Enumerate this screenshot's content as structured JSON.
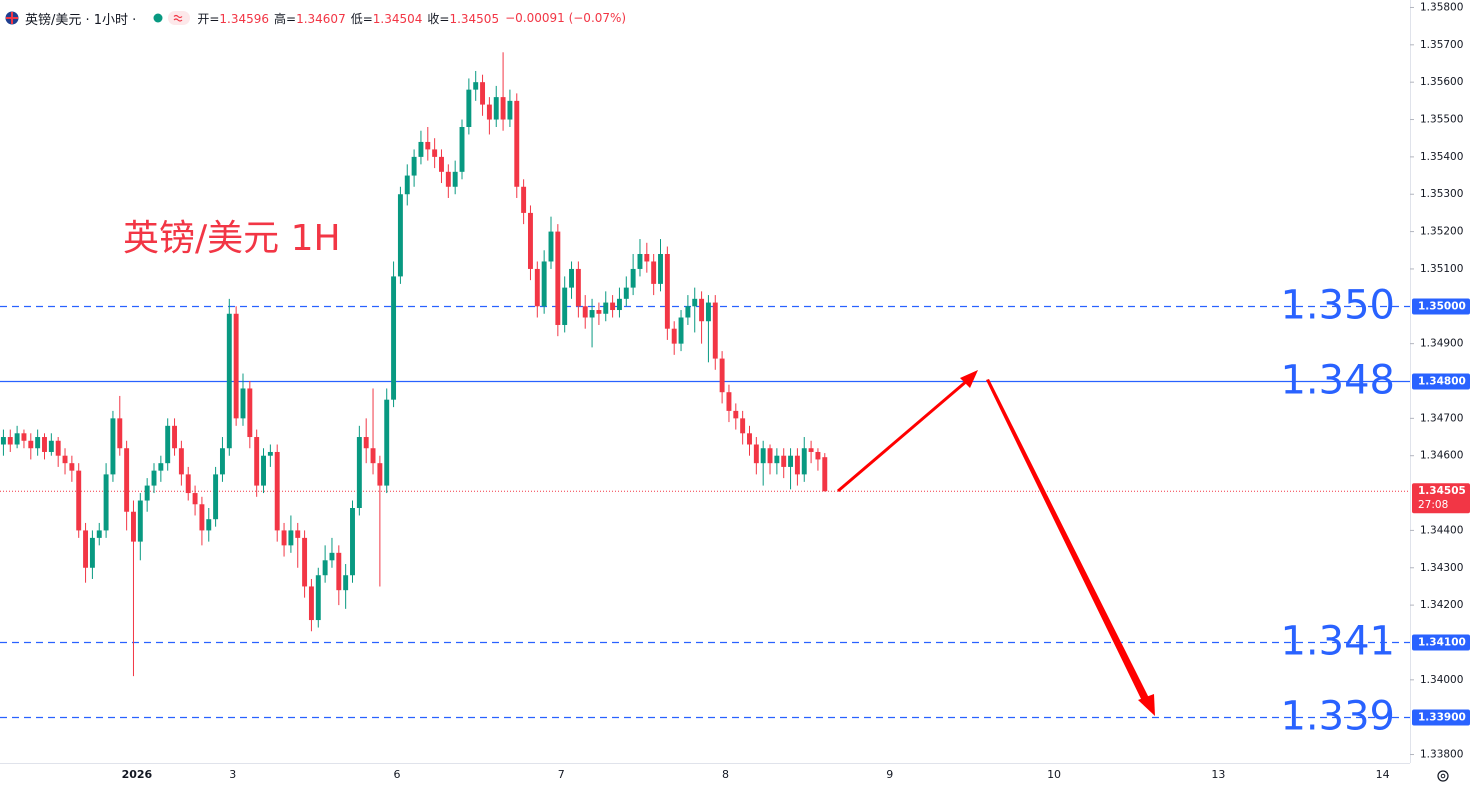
{
  "chart_data": {
    "type": "candlestick",
    "symbol": "英镑/美元 · 1小时 ·",
    "ohlc_labels": [
      "开=",
      "高=",
      "低=",
      "收="
    ],
    "ohlc_values": [
      1.34596,
      1.34607,
      1.34504,
      1.34505
    ],
    "change": "−0.00091 (−0.07%)",
    "title": "英镑/美元 1H",
    "up_color": "#089981",
    "down_color": "#f23645",
    "level_color": "#2962ff",
    "grid": false,
    "xlim": [
      -0.5,
      205.5
    ],
    "xticks": [
      {
        "value": 19.5,
        "label": "2026"
      },
      {
        "value": 33.5,
        "label": "3"
      },
      {
        "value": 57.5,
        "label": "6"
      },
      {
        "value": 81.5,
        "label": "7"
      },
      {
        "value": 105.5,
        "label": "8"
      },
      {
        "value": 129.5,
        "label": "9"
      },
      {
        "value": 153.5,
        "label": "10"
      },
      {
        "value": 177.5,
        "label": "13"
      },
      {
        "value": 201.5,
        "label": "14"
      }
    ],
    "ylim": [
      1.3378,
      1.3582
    ],
    "yticks": [
      {
        "value": 1.338,
        "label": "1.33800"
      },
      {
        "value": 1.34,
        "label": "1.34000"
      },
      {
        "value": 1.342,
        "label": "1.34200"
      },
      {
        "value": 1.343,
        "label": "1.34300"
      },
      {
        "value": 1.344,
        "label": "1.34400"
      },
      {
        "value": 1.346,
        "label": "1.34600"
      },
      {
        "value": 1.347,
        "label": "1.34700"
      },
      {
        "value": 1.349,
        "label": "1.34900"
      },
      {
        "value": 1.351,
        "label": "1.35100"
      },
      {
        "value": 1.352,
        "label": "1.35200"
      },
      {
        "value": 1.353,
        "label": "1.35300"
      },
      {
        "value": 1.354,
        "label": "1.35400"
      },
      {
        "value": 1.355,
        "label": "1.35500"
      },
      {
        "value": 1.356,
        "label": "1.35600"
      },
      {
        "value": 1.357,
        "label": "1.35700"
      },
      {
        "value": 1.358,
        "label": "1.35800"
      }
    ],
    "levels": [
      {
        "value": 1.35,
        "label": "1.350",
        "badge": "1.35000",
        "dashed": true
      },
      {
        "value": 1.348,
        "label": "1.348",
        "badge": "1.34800",
        "dashed": false
      },
      {
        "value": 1.341,
        "label": "1.341",
        "badge": "1.34100",
        "dashed": true
      },
      {
        "value": 1.339,
        "label": "1.339",
        "badge": "1.33900",
        "dashed": true
      }
    ],
    "last_price": {
      "value": 1.34505,
      "countdown": "27:08"
    },
    "candles": [
      [
        1.3463,
        1.3467,
        1.346,
        1.3465
      ],
      [
        1.3465,
        1.3467,
        1.3461,
        1.3463
      ],
      [
        1.3463,
        1.3468,
        1.3462,
        1.3466
      ],
      [
        1.3466,
        1.3467,
        1.3462,
        1.3464
      ],
      [
        1.3464,
        1.3466,
        1.3459,
        1.3462
      ],
      [
        1.3462,
        1.3467,
        1.346,
        1.3465
      ],
      [
        1.3465,
        1.3466,
        1.3459,
        1.3461
      ],
      [
        1.3461,
        1.3466,
        1.346,
        1.3464
      ],
      [
        1.3464,
        1.3465,
        1.3457,
        1.346
      ],
      [
        1.346,
        1.3462,
        1.3455,
        1.3458
      ],
      [
        1.3458,
        1.346,
        1.3453,
        1.3456
      ],
      [
        1.3456,
        1.3458,
        1.3438,
        1.344
      ],
      [
        1.344,
        1.3442,
        1.3426,
        1.343
      ],
      [
        1.343,
        1.344,
        1.3427,
        1.3438
      ],
      [
        1.3438,
        1.3442,
        1.3436,
        1.344
      ],
      [
        1.344,
        1.3458,
        1.3438,
        1.3455
      ],
      [
        1.3455,
        1.3472,
        1.3453,
        1.347
      ],
      [
        1.347,
        1.3476,
        1.346,
        1.3462
      ],
      [
        1.3462,
        1.3464,
        1.344,
        1.3445
      ],
      [
        1.3445,
        1.3448,
        1.3401,
        1.3437
      ],
      [
        1.3437,
        1.345,
        1.3432,
        1.3448
      ],
      [
        1.3448,
        1.3454,
        1.3445,
        1.3452
      ],
      [
        1.3452,
        1.3458,
        1.345,
        1.3456
      ],
      [
        1.3456,
        1.346,
        1.3453,
        1.3458
      ],
      [
        1.3458,
        1.347,
        1.3456,
        1.3468
      ],
      [
        1.3468,
        1.347,
        1.346,
        1.3462
      ],
      [
        1.3462,
        1.3464,
        1.3452,
        1.3455
      ],
      [
        1.3455,
        1.3457,
        1.3448,
        1.345
      ],
      [
        1.345,
        1.3452,
        1.3444,
        1.3447
      ],
      [
        1.3447,
        1.3449,
        1.3436,
        1.344
      ],
      [
        1.344,
        1.3446,
        1.3437,
        1.3443
      ],
      [
        1.3443,
        1.3457,
        1.3441,
        1.3455
      ],
      [
        1.3455,
        1.3465,
        1.3453,
        1.3462
      ],
      [
        1.3462,
        1.3502,
        1.346,
        1.3498
      ],
      [
        1.3498,
        1.35,
        1.3468,
        1.347
      ],
      [
        1.347,
        1.3482,
        1.3468,
        1.3478
      ],
      [
        1.3478,
        1.348,
        1.3462,
        1.3465
      ],
      [
        1.3465,
        1.3467,
        1.3449,
        1.3452
      ],
      [
        1.3452,
        1.3462,
        1.345,
        1.346
      ],
      [
        1.346,
        1.3463,
        1.3457,
        1.3461
      ],
      [
        1.3461,
        1.3463,
        1.3437,
        1.344
      ],
      [
        1.344,
        1.3442,
        1.3433,
        1.3436
      ],
      [
        1.3436,
        1.3444,
        1.3434,
        1.344
      ],
      [
        1.344,
        1.3442,
        1.343,
        1.3438
      ],
      [
        1.3438,
        1.344,
        1.3422,
        1.3425
      ],
      [
        1.3425,
        1.3427,
        1.3413,
        1.3416
      ],
      [
        1.3416,
        1.343,
        1.3414,
        1.3428
      ],
      [
        1.3428,
        1.3436,
        1.3426,
        1.3432
      ],
      [
        1.3432,
        1.3438,
        1.343,
        1.3434
      ],
      [
        1.3434,
        1.3436,
        1.342,
        1.3424
      ],
      [
        1.3424,
        1.3431,
        1.3419,
        1.3428
      ],
      [
        1.3428,
        1.3448,
        1.3426,
        1.3446
      ],
      [
        1.3446,
        1.3468,
        1.3444,
        1.3465
      ],
      [
        1.3465,
        1.347,
        1.3458,
        1.3462
      ],
      [
        1.3462,
        1.3478,
        1.3455,
        1.3458
      ],
      [
        1.3458,
        1.346,
        1.3425,
        1.3452
      ],
      [
        1.3452,
        1.3478,
        1.345,
        1.3475
      ],
      [
        1.3475,
        1.3512,
        1.3473,
        1.3508
      ],
      [
        1.3508,
        1.3532,
        1.3506,
        1.353
      ],
      [
        1.353,
        1.3538,
        1.3527,
        1.3535
      ],
      [
        1.3535,
        1.3542,
        1.3532,
        1.354
      ],
      [
        1.354,
        1.3547,
        1.3538,
        1.3544
      ],
      [
        1.3544,
        1.3548,
        1.3539,
        1.3542
      ],
      [
        1.3542,
        1.3545,
        1.3537,
        1.354
      ],
      [
        1.354,
        1.3542,
        1.3533,
        1.3536
      ],
      [
        1.3536,
        1.3538,
        1.3529,
        1.3532
      ],
      [
        1.3532,
        1.3539,
        1.353,
        1.3536
      ],
      [
        1.3536,
        1.355,
        1.3534,
        1.3548
      ],
      [
        1.3548,
        1.3561,
        1.3546,
        1.3558
      ],
      [
        1.3558,
        1.3563,
        1.3555,
        1.356
      ],
      [
        1.356,
        1.3562,
        1.3551,
        1.3554
      ],
      [
        1.3554,
        1.3556,
        1.3546,
        1.355
      ],
      [
        1.355,
        1.3559,
        1.3548,
        1.3556
      ],
      [
        1.3556,
        1.3568,
        1.3547,
        1.355
      ],
      [
        1.355,
        1.3558,
        1.3548,
        1.3555
      ],
      [
        1.3555,
        1.3557,
        1.3529,
        1.3532
      ],
      [
        1.3532,
        1.3534,
        1.3522,
        1.3525
      ],
      [
        1.3525,
        1.3527,
        1.3507,
        1.351
      ],
      [
        1.351,
        1.3512,
        1.3497,
        1.35
      ],
      [
        1.35,
        1.3515,
        1.3498,
        1.3512
      ],
      [
        1.3512,
        1.3524,
        1.351,
        1.352
      ],
      [
        1.352,
        1.3522,
        1.3492,
        1.3495
      ],
      [
        1.3495,
        1.3508,
        1.3493,
        1.3505
      ],
      [
        1.3505,
        1.3512,
        1.3502,
        1.351
      ],
      [
        1.351,
        1.3512,
        1.3497,
        1.35
      ],
      [
        1.35,
        1.3503,
        1.3494,
        1.3497
      ],
      [
        1.3497,
        1.3502,
        1.3489,
        1.3499
      ],
      [
        1.3499,
        1.3501,
        1.3495,
        1.3498
      ],
      [
        1.3498,
        1.3504,
        1.3496,
        1.3501
      ],
      [
        1.3501,
        1.3503,
        1.3497,
        1.3499
      ],
      [
        1.3499,
        1.3505,
        1.3497,
        1.3502
      ],
      [
        1.3502,
        1.3508,
        1.35,
        1.3505
      ],
      [
        1.3505,
        1.3514,
        1.3503,
        1.351
      ],
      [
        1.351,
        1.3518,
        1.3508,
        1.3514
      ],
      [
        1.3514,
        1.3517,
        1.3509,
        1.3512
      ],
      [
        1.3512,
        1.3514,
        1.3503,
        1.3506
      ],
      [
        1.3506,
        1.3518,
        1.3504,
        1.3514
      ],
      [
        1.3514,
        1.3516,
        1.3491,
        1.3494
      ],
      [
        1.3494,
        1.3496,
        1.3487,
        1.349
      ],
      [
        1.349,
        1.3499,
        1.3488,
        1.3497
      ],
      [
        1.3497,
        1.3503,
        1.3495,
        1.35
      ],
      [
        1.35,
        1.3505,
        1.3493,
        1.3502
      ],
      [
        1.3502,
        1.3504,
        1.349,
        1.3496
      ],
      [
        1.3496,
        1.3503,
        1.3485,
        1.3501
      ],
      [
        1.3501,
        1.3503,
        1.3483,
        1.3486
      ],
      [
        1.3486,
        1.3488,
        1.3474,
        1.3477
      ],
      [
        1.3477,
        1.3479,
        1.3469,
        1.3472
      ],
      [
        1.3472,
        1.3474,
        1.3467,
        1.347
      ],
      [
        1.347,
        1.3472,
        1.3463,
        1.3466
      ],
      [
        1.3466,
        1.3468,
        1.346,
        1.3463
      ],
      [
        1.3463,
        1.3465,
        1.3455,
        1.3458
      ],
      [
        1.3458,
        1.3464,
        1.3452,
        1.3462
      ],
      [
        1.3462,
        1.3463,
        1.3455,
        1.3458
      ],
      [
        1.3458,
        1.3462,
        1.3455,
        1.346
      ],
      [
        1.346,
        1.3462,
        1.3454,
        1.3457
      ],
      [
        1.3457,
        1.3462,
        1.3451,
        1.346
      ],
      [
        1.346,
        1.3462,
        1.3452,
        1.3455
      ],
      [
        1.3455,
        1.3465,
        1.3453,
        1.3462
      ],
      [
        1.3462,
        1.3464,
        1.3458,
        1.3461
      ],
      [
        1.3461,
        1.3462,
        1.3456,
        1.3459
      ],
      [
        1.34596,
        1.34607,
        1.34504,
        1.34505
      ]
    ]
  }
}
